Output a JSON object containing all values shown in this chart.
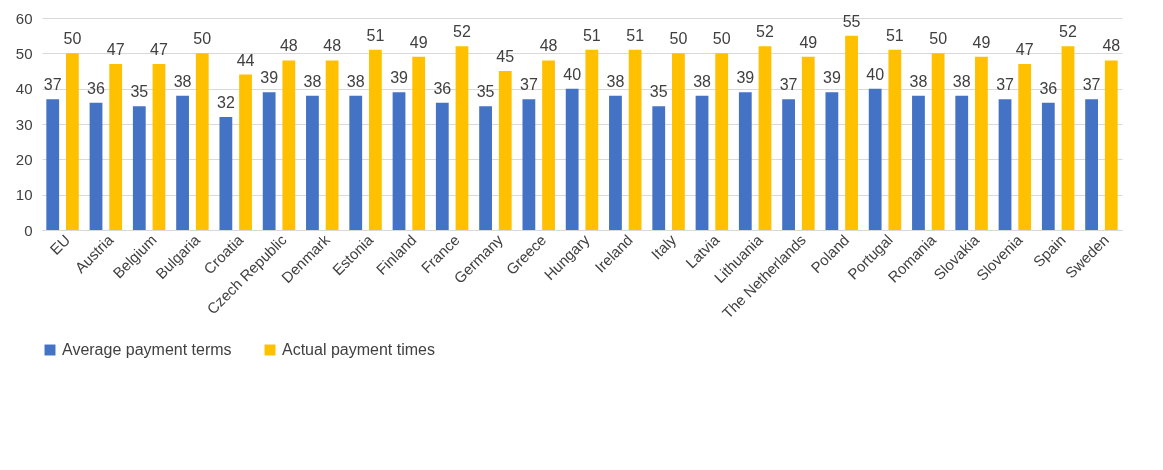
{
  "chart_data": {
    "type": "bar",
    "categories": [
      "EU",
      "Austria",
      "Belgium",
      "Bulgaria",
      "Croatia",
      "Czech Republic",
      "Denmark",
      "Estonia",
      "Finland",
      "France",
      "Germany",
      "Greece",
      "Hungary",
      "Ireland",
      "Italy",
      "Latvia",
      "Lithuania",
      "The Netherlands",
      "Poland",
      "Portugal",
      "Romania",
      "Slovakia",
      "Slovenia",
      "Spain",
      "Sweden"
    ],
    "series": [
      {
        "name": "Average payment terms",
        "color": "#4472c4",
        "values": [
          37,
          36,
          35,
          38,
          32,
          39,
          38,
          38,
          39,
          36,
          35,
          37,
          40,
          38,
          35,
          38,
          39,
          37,
          39,
          40,
          38,
          38,
          37,
          36,
          37
        ]
      },
      {
        "name": "Actual payment times",
        "color": "#ffc000",
        "values": [
          50,
          47,
          47,
          50,
          44,
          48,
          48,
          51,
          49,
          52,
          45,
          48,
          51,
          51,
          50,
          50,
          52,
          49,
          55,
          51,
          50,
          49,
          47,
          52,
          48
        ]
      }
    ],
    "ylim": [
      0,
      60
    ],
    "yticks": [
      0,
      10,
      20,
      30,
      40,
      50,
      60
    ],
    "grid": "y",
    "legend": "bottom",
    "data_labels": true
  }
}
